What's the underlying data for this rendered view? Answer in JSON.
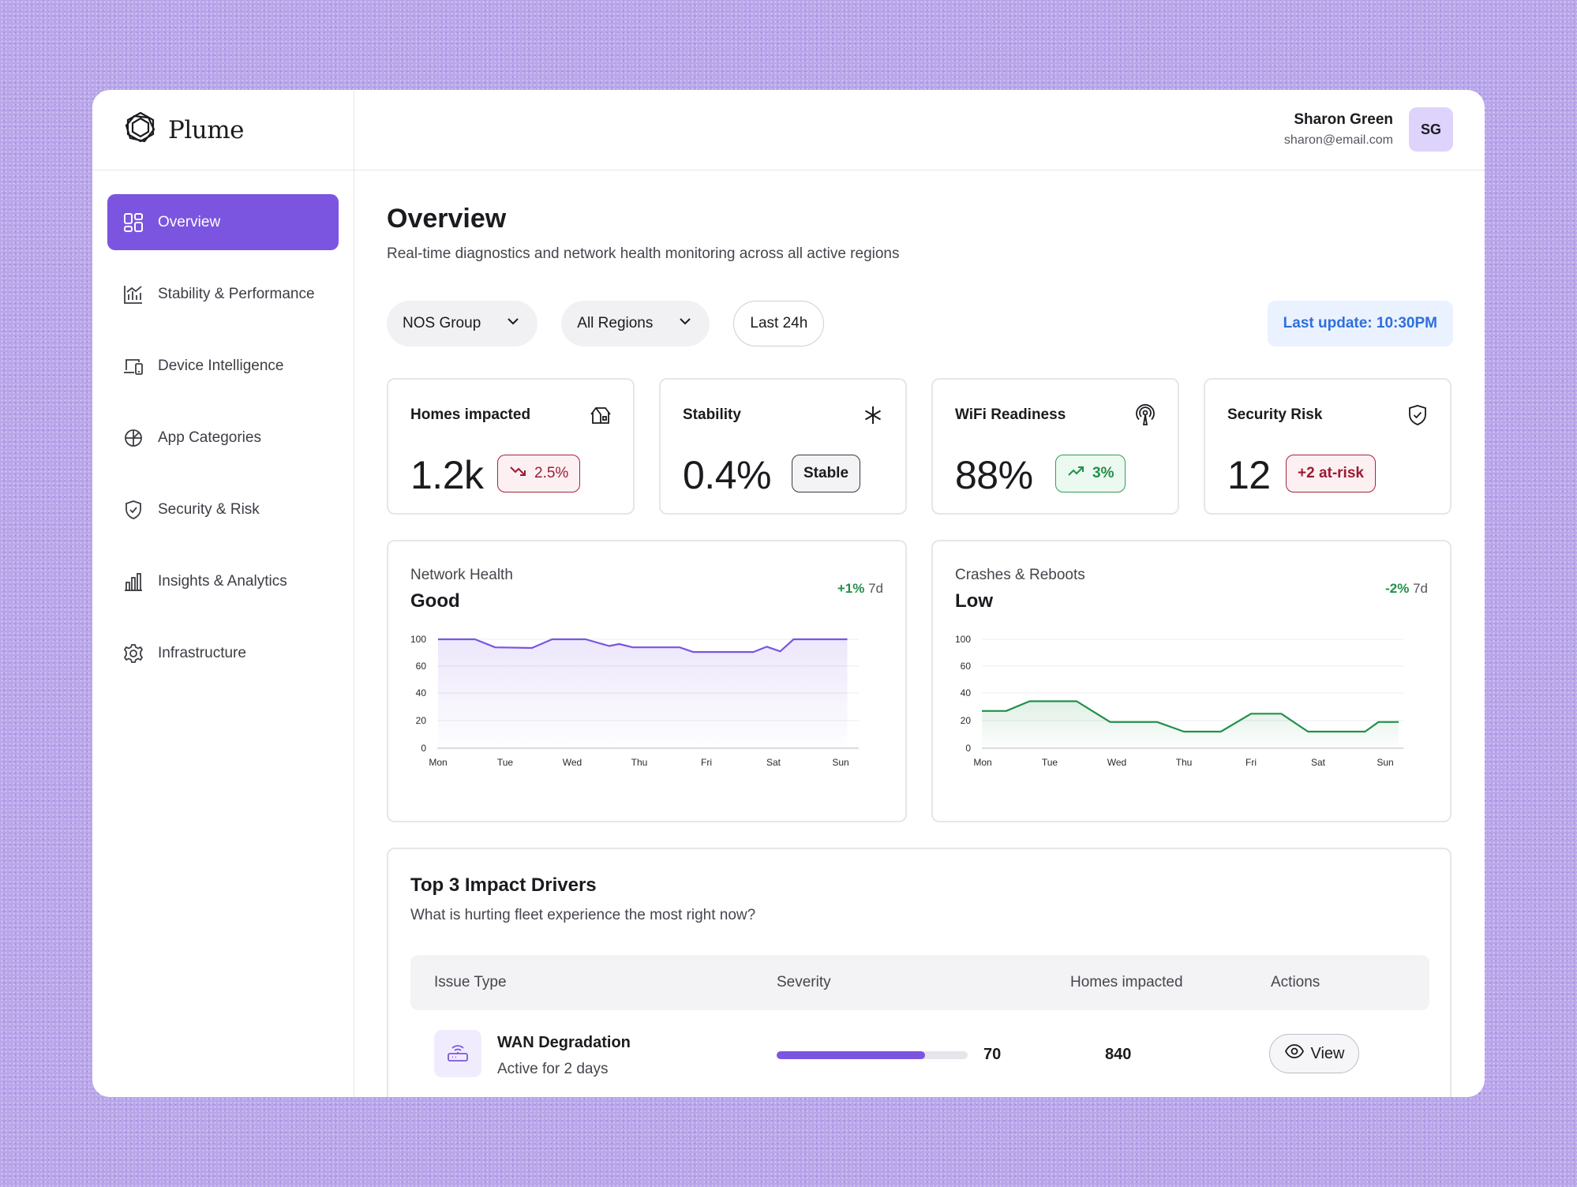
{
  "brand": {
    "name": "Plume"
  },
  "user": {
    "name": "Sharon Green",
    "email": "sharon@email.com",
    "initials": "SG"
  },
  "nav": [
    {
      "label": "Overview",
      "icon": "grid-icon",
      "active": true
    },
    {
      "label": "Stability & Performance",
      "icon": "bar-chart-icon",
      "active": false
    },
    {
      "label": "Device Intelligence",
      "icon": "devices-icon",
      "active": false
    },
    {
      "label": "App Categories",
      "icon": "pie-icon",
      "active": false
    },
    {
      "label": "Security & Risk",
      "icon": "shield-icon",
      "active": false
    },
    {
      "label": "Insights & Analytics",
      "icon": "analytics-icon",
      "active": false
    },
    {
      "label": "Infrastructure",
      "icon": "gear-icon",
      "active": false
    }
  ],
  "page": {
    "title": "Overview",
    "subtitle": "Real-time diagnostics and network health monitoring across all active regions"
  },
  "filters": {
    "group": "NOS Group",
    "region": "All Regions",
    "range": "Last 24h",
    "last_update": "Last update: 10:30PM"
  },
  "kpis": [
    {
      "label": "Homes impacted",
      "value": "1.2k",
      "badge": "2.5%",
      "icon": "home-icon"
    },
    {
      "label": "Stability",
      "value": "0.4%",
      "badge": "Stable",
      "icon": "asterisk-icon"
    },
    {
      "label": "WiFi Readiness",
      "value": "88%",
      "badge": "3%",
      "icon": "antenna-icon"
    },
    {
      "label": "Security Risk",
      "value": "12",
      "badge": "+2 at-risk",
      "icon": "shield-check-icon"
    }
  ],
  "colors": {
    "accent": "#7b55e0",
    "green": "#22904a",
    "red": "#9c1b33",
    "blue": "#2e6fdc"
  },
  "chart_data": [
    {
      "type": "area",
      "label": "Network Health",
      "status": "Good",
      "delta": "+1%",
      "period": "7d",
      "categories": [
        "Mon",
        "Tue",
        "Wed",
        "Thu",
        "Fri",
        "Sat",
        "Sun"
      ],
      "y_ticks": [
        0,
        20,
        40,
        60,
        100
      ],
      "color": "#7b55e0",
      "points": [
        {
          "x": 0,
          "y": 100
        },
        {
          "x": 0.55,
          "y": 100
        },
        {
          "x": 0.85,
          "y": 88
        },
        {
          "x": 1.4,
          "y": 87
        },
        {
          "x": 1.7,
          "y": 100
        },
        {
          "x": 2.2,
          "y": 100
        },
        {
          "x": 2.55,
          "y": 90
        },
        {
          "x": 2.7,
          "y": 93
        },
        {
          "x": 2.9,
          "y": 88
        },
        {
          "x": 3.6,
          "y": 88
        },
        {
          "x": 3.8,
          "y": 81
        },
        {
          "x": 4.7,
          "y": 81
        },
        {
          "x": 4.9,
          "y": 89
        },
        {
          "x": 5.1,
          "y": 82
        },
        {
          "x": 5.3,
          "y": 100
        },
        {
          "x": 6.1,
          "y": 100
        }
      ]
    },
    {
      "type": "area",
      "label": "Crashes & Reboots",
      "status": "Low",
      "delta": "-2%",
      "period": "7d",
      "categories": [
        "Mon",
        "Tue",
        "Wed",
        "Thu",
        "Fri",
        "Sat",
        "Sun"
      ],
      "y_ticks": [
        0,
        20,
        40,
        60,
        100
      ],
      "color": "#22904a",
      "points": [
        {
          "x": -0.2,
          "y": 27
        },
        {
          "x": 0.35,
          "y": 27
        },
        {
          "x": 0.7,
          "y": 34
        },
        {
          "x": 1.4,
          "y": 34
        },
        {
          "x": 1.9,
          "y": 19
        },
        {
          "x": 2.6,
          "y": 19
        },
        {
          "x": 3.0,
          "y": 12
        },
        {
          "x": 3.55,
          "y": 12
        },
        {
          "x": 4.0,
          "y": 25
        },
        {
          "x": 4.45,
          "y": 25
        },
        {
          "x": 4.85,
          "y": 12
        },
        {
          "x": 5.7,
          "y": 12
        },
        {
          "x": 5.9,
          "y": 19
        },
        {
          "x": 6.2,
          "y": 19
        }
      ]
    }
  ],
  "drivers": {
    "title": "Top 3 Impact Drivers",
    "subtitle": "What is hurting fleet experience the most right now?",
    "columns": [
      "Issue Type",
      "Severity",
      "Homes impacted",
      "Actions"
    ],
    "rows": [
      {
        "name": "WAN Degradation",
        "sub": "Active for 2 days",
        "severity": 70,
        "homes": "840",
        "action": "View",
        "icon": "router-icon"
      }
    ]
  }
}
